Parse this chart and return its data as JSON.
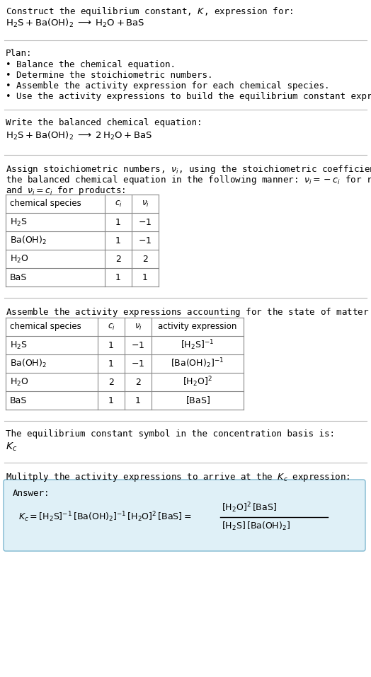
{
  "bg_color": "#ffffff",
  "text_color": "#000000",
  "title_line1": "Construct the equilibrium constant, $K$, expression for:",
  "title_line2": "$\\mathrm{H_2S + Ba(OH)_2 \\;\\longrightarrow\\; H_2O + BaS}$",
  "plan_header": "Plan:",
  "plan_items": [
    "• Balance the chemical equation.",
    "• Determine the stoichiometric numbers.",
    "• Assemble the activity expression for each chemical species.",
    "• Use the activity expressions to build the equilibrium constant expression."
  ],
  "balanced_header": "Write the balanced chemical equation:",
  "balanced_eq": "$\\mathrm{H_2S + Ba(OH)_2 \\;\\longrightarrow\\; 2\\,H_2O + BaS}$",
  "stoich_text1": "Assign stoichiometric numbers, $\\nu_i$, using the stoichiometric coefficients, $c_i$, from",
  "stoich_text2": "the balanced chemical equation in the following manner: $\\nu_i = -c_i$ for reactants",
  "stoich_text3": "and $\\nu_i = c_i$ for products:",
  "table1_cols": [
    "chemical species",
    "$c_i$",
    "$\\nu_i$"
  ],
  "table1_rows": [
    [
      "$\\mathrm{H_2S}$",
      "1",
      "$-1$"
    ],
    [
      "$\\mathrm{Ba(OH)_2}$",
      "1",
      "$-1$"
    ],
    [
      "$\\mathrm{H_2O}$",
      "2",
      "2"
    ],
    [
      "BaS",
      "1",
      "1"
    ]
  ],
  "activity_header": "Assemble the activity expressions accounting for the state of matter and $\\nu_i$:",
  "table2_cols": [
    "chemical species",
    "$c_i$",
    "$\\nu_i$",
    "activity expression"
  ],
  "table2_rows": [
    [
      "$\\mathrm{H_2S}$",
      "1",
      "$-1$",
      "$[\\mathrm{H_2S}]^{-1}$"
    ],
    [
      "$\\mathrm{Ba(OH)_2}$",
      "1",
      "$-1$",
      "$[\\mathrm{Ba(OH)_2}]^{-1}$"
    ],
    [
      "$\\mathrm{H_2O}$",
      "2",
      "2",
      "$[\\mathrm{H_2O}]^{2}$"
    ],
    [
      "BaS",
      "1",
      "1",
      "$[\\mathrm{BaS}]$"
    ]
  ],
  "kc_header": "The equilibrium constant symbol in the concentration basis is:",
  "kc_symbol": "$K_c$",
  "multiply_header": "Mulitply the activity expressions to arrive at the $K_c$ expression:",
  "answer_label": "Answer:",
  "answer_eq": "$K_c = [\\mathrm{H_2S}]^{-1}\\,[\\mathrm{Ba(OH)_2}]^{-1}\\,[\\mathrm{H_2O}]^{2}\\,[\\mathrm{BaS}] = $",
  "frac_num": "$[\\mathrm{H_2O}]^{2}\\,[\\mathrm{BaS}]$",
  "frac_den": "$[\\mathrm{H_2S}]\\,[\\mathrm{Ba(OH)_2}]$",
  "answer_box_color": "#dff0f7",
  "answer_box_border": "#7fb8d0",
  "mono_font": "DejaVu Sans Mono",
  "serif_font": "DejaVu Serif"
}
